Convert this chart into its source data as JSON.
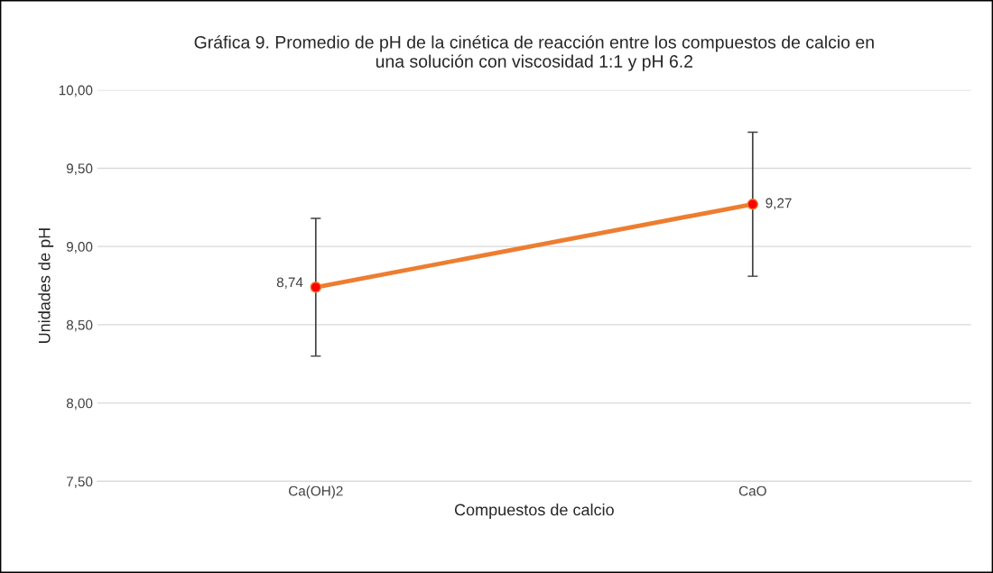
{
  "chart_data": {
    "type": "line",
    "title": "Gráfica 9. Promedio de pH de la cinética de reacción entre los compuestos de calcio en\nuna solución con viscosidad 1:1 y pH 6.2",
    "xlabel": "Compuestos de calcio",
    "ylabel": "Unidades de pH",
    "categories": [
      "Ca(OH)2",
      "CaO"
    ],
    "series": [
      {
        "color": "#ed7d31",
        "values": [
          8.74,
          9.27
        ],
        "errors": [
          0.44,
          0.46
        ],
        "value_labels": [
          "8,74",
          "9,27"
        ]
      }
    ],
    "ylim": [
      7.5,
      10.0
    ],
    "yticks": [
      {
        "value": 7.5,
        "label": "7,50"
      },
      {
        "value": 8.0,
        "label": "8,00"
      },
      {
        "value": 8.5,
        "label": "8,50"
      },
      {
        "value": 9.0,
        "label": "9,00"
      },
      {
        "value": 9.5,
        "label": "9,50"
      },
      {
        "value": 10.0,
        "label": "10,00"
      }
    ],
    "grid": "y",
    "legend": false,
    "marker": "circle",
    "line_style": "solid"
  }
}
